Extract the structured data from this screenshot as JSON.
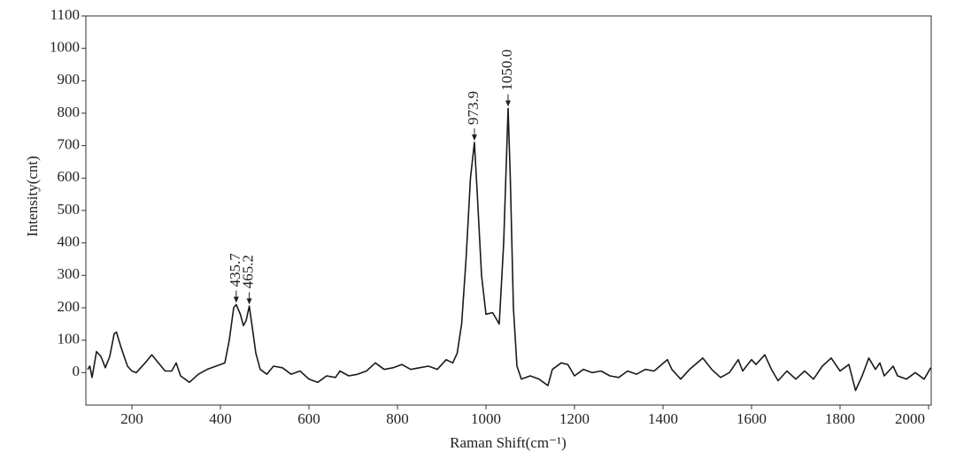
{
  "chart_data": {
    "type": "line",
    "xlabel": "Raman Shift(cm⁻¹)",
    "ylabel": "Intensity(cnt)",
    "color": "#1a1a1a",
    "xlim": [
      96,
      2006
    ],
    "ylim": [
      -100,
      1100
    ],
    "xticks": [
      200,
      400,
      600,
      800,
      1000,
      1200,
      1400,
      1600,
      1800,
      2000
    ],
    "yticks": [
      0,
      100,
      200,
      300,
      400,
      500,
      600,
      700,
      800,
      900,
      1000,
      1100
    ],
    "x": [
      100,
      105,
      110,
      120,
      130,
      140,
      150,
      160,
      165,
      175,
      190,
      200,
      210,
      230,
      245,
      260,
      275,
      290,
      300,
      310,
      330,
      350,
      370,
      390,
      410,
      420,
      430,
      435.7,
      445,
      452,
      458,
      465.2,
      472,
      480,
      490,
      505,
      520,
      540,
      560,
      580,
      600,
      620,
      640,
      660,
      670,
      690,
      710,
      730,
      750,
      770,
      790,
      810,
      830,
      850,
      870,
      890,
      910,
      925,
      935,
      945,
      955,
      965,
      973.9,
      980,
      990,
      1000,
      1015,
      1030,
      1040,
      1050,
      1055,
      1062,
      1070,
      1080,
      1100,
      1120,
      1140,
      1150,
      1170,
      1185,
      1200,
      1220,
      1240,
      1260,
      1280,
      1300,
      1320,
      1340,
      1360,
      1380,
      1410,
      1420,
      1440,
      1460,
      1490,
      1510,
      1530,
      1550,
      1570,
      1580,
      1600,
      1610,
      1630,
      1645,
      1660,
      1680,
      1700,
      1720,
      1740,
      1760,
      1780,
      1800,
      1820,
      1835,
      1850,
      1865,
      1880,
      1890,
      1900,
      1920,
      1930,
      1950,
      1970,
      1990,
      2005
    ],
    "values": [
      10,
      20,
      -15,
      65,
      50,
      15,
      50,
      120,
      125,
      80,
      20,
      5,
      0,
      30,
      55,
      30,
      5,
      5,
      30,
      -10,
      -30,
      -5,
      10,
      20,
      30,
      100,
      200,
      210,
      180,
      145,
      160,
      205,
      140,
      60,
      10,
      -5,
      20,
      15,
      -5,
      5,
      -20,
      -30,
      -10,
      -15,
      5,
      -10,
      -5,
      5,
      30,
      10,
      15,
      25,
      10,
      15,
      20,
      10,
      40,
      30,
      60,
      150,
      350,
      600,
      710,
      560,
      300,
      180,
      185,
      150,
      400,
      815,
      600,
      200,
      20,
      -20,
      -10,
      -20,
      -40,
      10,
      30,
      25,
      -10,
      10,
      0,
      5,
      -10,
      -15,
      5,
      -5,
      10,
      5,
      40,
      10,
      -20,
      10,
      45,
      10,
      -15,
      0,
      40,
      5,
      40,
      25,
      55,
      10,
      -25,
      5,
      -20,
      5,
      -20,
      20,
      45,
      5,
      25,
      -55,
      -10,
      45,
      10,
      30,
      -10,
      20,
      -10,
      -20,
      0,
      -20,
      15
    ],
    "annotations": [
      {
        "text": "435.7",
        "x": 435.7,
        "y": 215
      },
      {
        "text": "465.2",
        "x": 465.2,
        "y": 210
      },
      {
        "text": "973.9",
        "x": 973.9,
        "y": 715
      },
      {
        "text": "1050.0",
        "x": 1050,
        "y": 820
      }
    ]
  }
}
